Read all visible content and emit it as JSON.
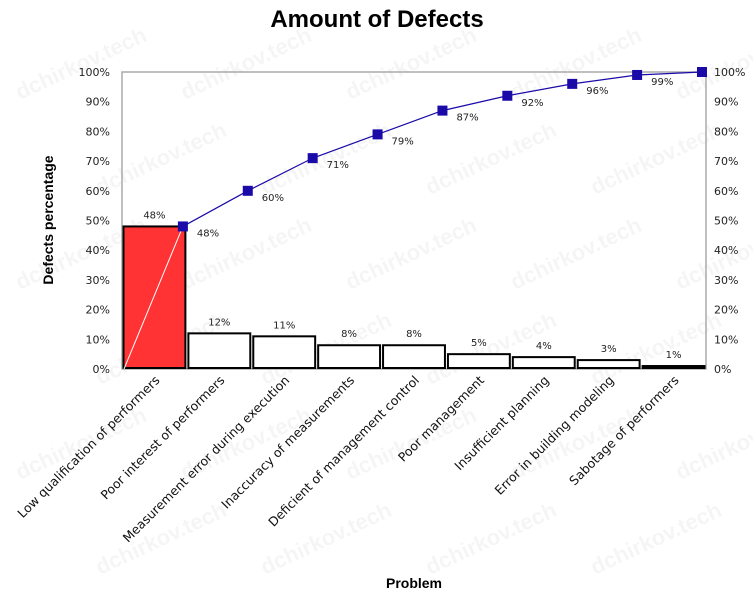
{
  "chart_data": {
    "type": "pareto",
    "title": "Amount of Defects",
    "xlabel": "Problem",
    "ylabel": "Defects percentage",
    "ylim": [
      0,
      100
    ],
    "y_ticks": [
      "0%",
      "10%",
      "20%",
      "30%",
      "40%",
      "50%",
      "60%",
      "70%",
      "80%",
      "90%",
      "100%"
    ],
    "secondary_y_ticks": [
      "0%",
      "10%",
      "20%",
      "30%",
      "40%",
      "50%",
      "60%",
      "70%",
      "80%",
      "90%",
      "100%"
    ],
    "categories": [
      "Low qualification of performers",
      "Poor interest of performers",
      "Measurement error during execution",
      "Inaccuracy of measurements",
      "Deficient of management control",
      "Poor management",
      "Insufficient planning",
      "Error in building modeling",
      "Sabotage of performers"
    ],
    "series": [
      {
        "type": "bar",
        "values": [
          48,
          12,
          11,
          8,
          8,
          5,
          4,
          3,
          1
        ],
        "labels": [
          "48%",
          "12%",
          "11%",
          "8%",
          "8%",
          "5%",
          "4%",
          "3%",
          "1%"
        ],
        "colors": [
          "#ff3333",
          "#ffffff",
          "#ffffff",
          "#ffffff",
          "#ffffff",
          "#ffffff",
          "#ffffff",
          "#ffffff",
          "#ffffff"
        ]
      },
      {
        "type": "line",
        "values": [
          48,
          60,
          71,
          79,
          87,
          92,
          96,
          99,
          100
        ],
        "labels": [
          "48%",
          "60%",
          "71%",
          "79%",
          "87%",
          "92%",
          "96%",
          "99%",
          ""
        ],
        "color": "#1a0aa8"
      }
    ],
    "grid": false,
    "watermark": "dchirkov.tech"
  }
}
